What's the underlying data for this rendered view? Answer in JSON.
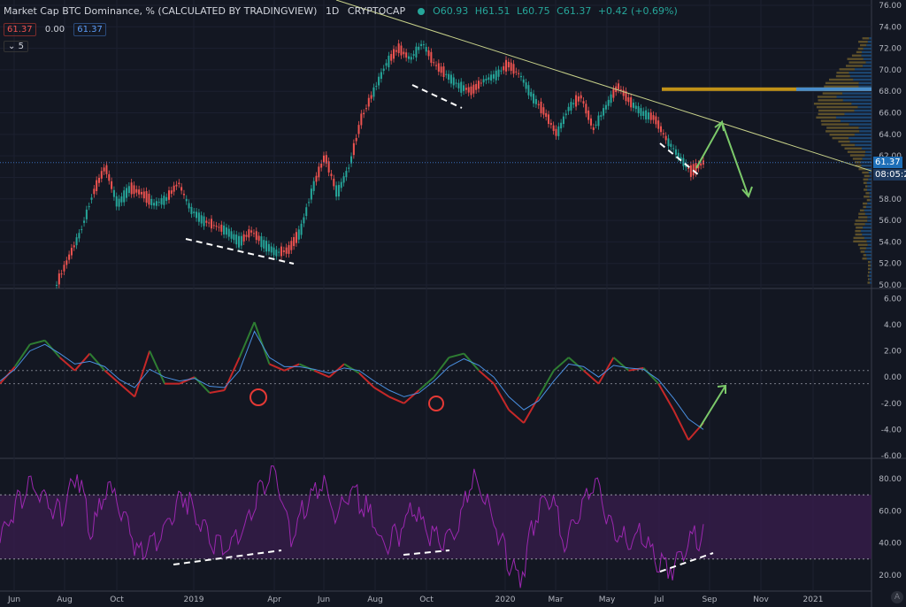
{
  "header": {
    "title": "Market Cap BTC Dominance, % (CALCULATED BY TRADINGVIEW)",
    "interval": "1D",
    "exchange": "CRYPTOCAP",
    "open": "O60.93",
    "high": "H61.51",
    "low": "L60.75",
    "close": "C61.37",
    "change": "+0.42 (+0.69%)"
  },
  "indicator_row": {
    "value_red": "61.37",
    "value_zero": "0.00",
    "value_blue": "61.37"
  },
  "collapse_label": "5",
  "price_tags": {
    "last_price": "61.37",
    "countdown": "08:05:22"
  },
  "watermark": "A",
  "colors": {
    "background": "#131722",
    "volume_profile_up": "#6b5a2c",
    "volume_profile_down": "#1e4a78",
    "macd_up": "#2e7d32",
    "macd_down": "#c62828",
    "signal": "#4a90e2",
    "rsi": "#9c27b0",
    "trendline": "#c8d28a",
    "arrow": "#7cc96a",
    "circle": "#e53935",
    "last_price_tag": "#1e6fb8"
  },
  "chart_data": [
    {
      "type": "candlestick",
      "name": "price",
      "x_labels": [
        "Jun",
        "Aug",
        "Oct",
        "2019",
        "Apr",
        "Jun",
        "Aug",
        "Oct",
        "2020",
        "Mar",
        "May",
        "Jul",
        "Sep",
        "Nov",
        "2021"
      ],
      "y_ticks": [
        "76.00",
        "74.00",
        "72.00",
        "70.00",
        "68.00",
        "66.00",
        "64.00",
        "62.00",
        "60.00",
        "58.00",
        "56.00",
        "54.00",
        "52.00",
        "50.00"
      ],
      "ylim": [
        50,
        76
      ],
      "series": [
        {
          "values": [
            50.0,
            52.5,
            55.0,
            58.5,
            61.0,
            57.5,
            59.0,
            58.5,
            57.5,
            58.0,
            59.5,
            57.0,
            56.0,
            55.5,
            55.0,
            54.0,
            55.0,
            53.8,
            53.0,
            53.2,
            55.0,
            59.0,
            62.0,
            58.5,
            61.0,
            65.5,
            68.0,
            70.5,
            72.0,
            71.0,
            72.5,
            70.5,
            69.5,
            68.5,
            68.0,
            69.0,
            69.5,
            70.5,
            69.5,
            67.5,
            66.0,
            64.0,
            66.5,
            67.5,
            64.5,
            66.5,
            68.5,
            67.0,
            66.0,
            65.5,
            63.5,
            62.0,
            60.5,
            61.37
          ]
        }
      ]
    },
    {
      "type": "line",
      "name": "macd",
      "y_ticks": [
        "6.00",
        "4.00",
        "2.00",
        "0.00",
        "-2.00",
        "-4.00",
        "-6.00"
      ],
      "ylim": [
        -6,
        6.5
      ],
      "series": [
        {
          "values": [
            -0.5,
            0.8,
            2.5,
            2.8,
            1.5,
            0.5,
            1.8,
            0.5,
            -0.5,
            -1.5,
            2.0,
            -0.5,
            -0.5,
            0.0,
            -1.2,
            -1.0,
            1.5,
            4.2,
            1.0,
            0.5,
            1.0,
            0.5,
            0.0,
            1.0,
            0.3,
            -0.8,
            -1.5,
            -2.0,
            -1.0,
            0.0,
            1.5,
            1.8,
            0.5,
            -0.5,
            -2.5,
            -3.5,
            -1.5,
            0.5,
            1.5,
            0.5,
            -0.5,
            1.5,
            0.5,
            0.7,
            -0.5,
            -2.5,
            -4.8,
            -3.5
          ]
        },
        {
          "values": [
            -0.3,
            0.6,
            2.0,
            2.5,
            1.8,
            1.0,
            1.2,
            0.8,
            -0.2,
            -0.8,
            0.6,
            0.0,
            -0.3,
            -0.1,
            -0.7,
            -0.8,
            0.5,
            3.5,
            1.5,
            0.8,
            0.8,
            0.6,
            0.3,
            0.7,
            0.5,
            -0.3,
            -1.0,
            -1.5,
            -1.2,
            -0.3,
            0.8,
            1.4,
            0.9,
            0.0,
            -1.5,
            -2.5,
            -1.8,
            -0.3,
            1.0,
            0.8,
            0.0,
            0.9,
            0.7,
            0.6,
            -0.2,
            -1.6,
            -3.2,
            -4.0
          ]
        }
      ]
    },
    {
      "type": "line",
      "name": "rsi",
      "y_ticks": [
        "80.00",
        "60.00",
        "40.00",
        "20.00"
      ],
      "ylim": [
        10,
        90
      ],
      "bands": [
        30,
        70
      ],
      "series": [
        {
          "values": [
            40,
            65,
            75,
            70,
            55,
            85,
            45,
            75,
            60,
            35,
            40,
            55,
            70,
            55,
            38,
            40,
            50,
            75,
            85,
            45,
            65,
            80,
            55,
            75,
            60,
            40,
            45,
            60,
            48,
            40,
            55,
            80,
            60,
            35,
            15,
            55,
            70,
            40,
            60,
            80,
            50,
            40,
            45,
            30,
            25,
            40,
            45
          ]
        }
      ]
    }
  ]
}
